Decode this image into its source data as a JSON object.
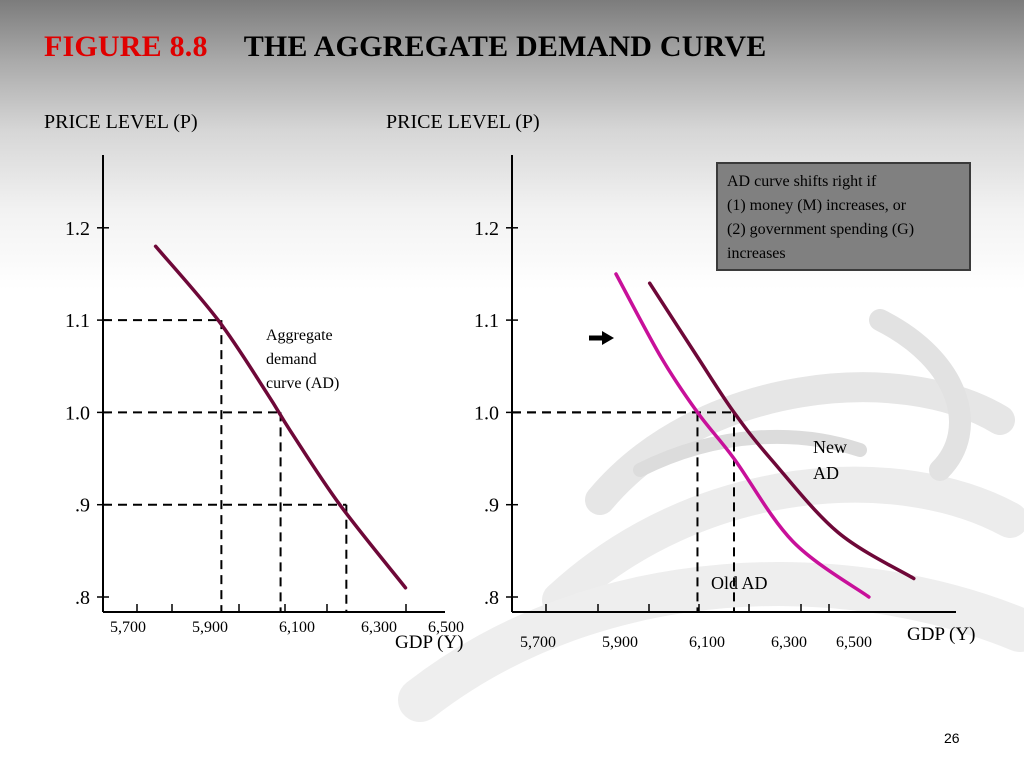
{
  "slide": {
    "figure_label": "FIGURE 8.8",
    "title": "THE AGGREGATE DEMAND CURVE",
    "page_number": "26"
  },
  "infobox": {
    "lines": [
      "AD curve shifts right if",
      "(1) money (M) increases, or",
      "(2) government spending (G)",
      "increases"
    ],
    "background": "#808080"
  },
  "chart_data": [
    {
      "type": "line",
      "ylabel": "PRICE LEVEL (P)",
      "xlabel": "GDP (Y)",
      "x_ticks": [
        "5,700",
        "5,900",
        "6,100",
        "6,300",
        "6,500"
      ],
      "y_ticks": [
        ".8",
        ".9",
        "1.0",
        "1.1",
        "1.2"
      ],
      "series": [
        {
          "color": "#6e0838",
          "points": [
            {
              "x": 5660,
              "y": 1.18
            },
            {
              "x": 5850,
              "y": 1.1
            },
            {
              "x": 6000,
              "y": 1.02
            },
            {
              "x": 6070,
              "y": 0.98
            },
            {
              "x": 6220,
              "y": 0.9
            },
            {
              "x": 6420,
              "y": 0.81
            }
          ]
        }
      ],
      "annotation": {
        "lines": [
          "Aggregate",
          "demand",
          "curve (AD)"
        ]
      },
      "guide_points": [
        {
          "x": 5860,
          "y": 1.1
        },
        {
          "x": 6040,
          "y": 1.0
        },
        {
          "x": 6240,
          "y": 0.9
        }
      ]
    },
    {
      "type": "line",
      "ylabel": "PRICE LEVEL (P)",
      "xlabel": "GDP (Y)",
      "x_ticks": [
        "5,700",
        "5,900",
        "6,100",
        "6,300",
        "6,500"
      ],
      "y_ticks": [
        ".8",
        ".9",
        "1.0",
        "1.1",
        "1.2"
      ],
      "series": [
        {
          "name": "Old AD",
          "color": "#c8109a",
          "points": [
            {
              "x": 5640,
              "y": 1.15
            },
            {
              "x": 5800,
              "y": 1.06
            },
            {
              "x": 5930,
              "y": 1.0
            },
            {
              "x": 6060,
              "y": 0.95
            },
            {
              "x": 6270,
              "y": 0.86
            },
            {
              "x": 6540,
              "y": 0.8
            }
          ]
        },
        {
          "name": "New AD",
          "color": "#6e0838",
          "points": [
            {
              "x": 5760,
              "y": 1.14
            },
            {
              "x": 5930,
              "y": 1.06
            },
            {
              "x": 6060,
              "y": 1.0
            },
            {
              "x": 6190,
              "y": 0.95
            },
            {
              "x": 6430,
              "y": 0.87
            },
            {
              "x": 6700,
              "y": 0.82
            }
          ]
        }
      ],
      "series_labels": {
        "new": [
          "New",
          "AD"
        ],
        "old": [
          "Old AD"
        ]
      },
      "shift_arrow": "right",
      "guide_points": [
        {
          "x": 5930,
          "y": 1.0
        },
        {
          "x": 6060,
          "y": 1.0
        }
      ]
    }
  ]
}
